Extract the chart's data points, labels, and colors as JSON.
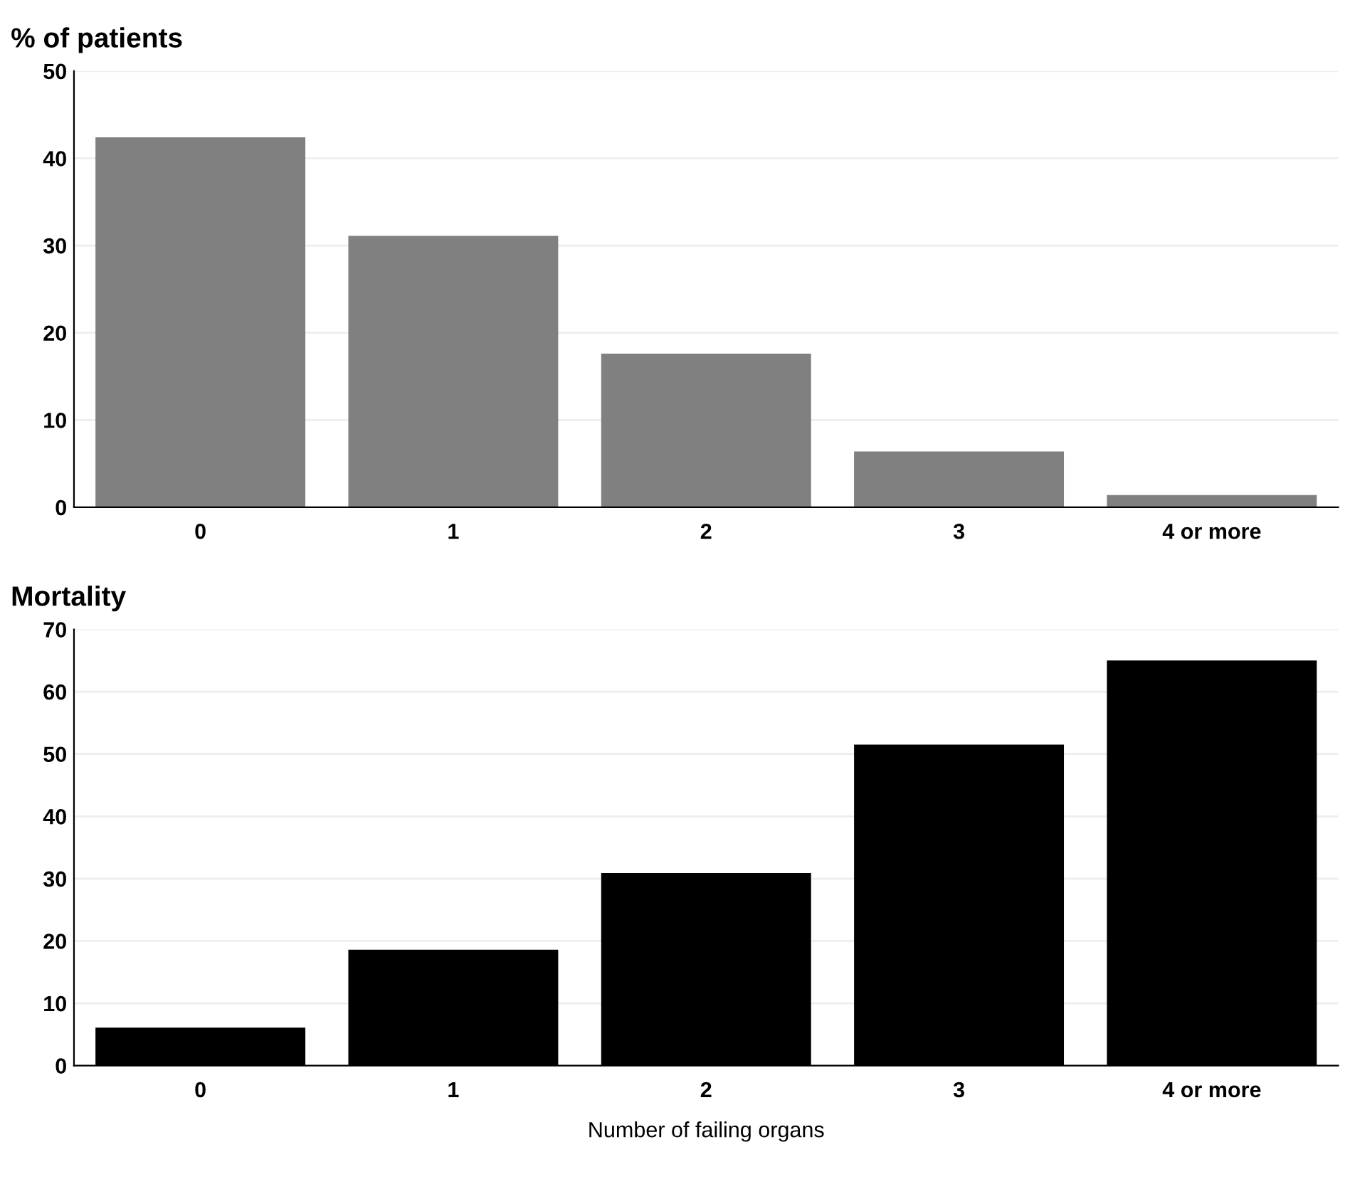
{
  "chart_data": [
    {
      "type": "bar",
      "title": "% of patients",
      "categories": [
        "0",
        "1",
        "2",
        "3",
        "4 or more"
      ],
      "values": [
        42.4,
        31.1,
        17.6,
        6.4,
        1.4
      ],
      "color": "#808080",
      "ylim": [
        0,
        50
      ],
      "yticks": [
        0,
        10,
        20,
        30,
        40,
        50
      ],
      "grid": "y"
    },
    {
      "type": "bar",
      "title": "Mortality",
      "xlabel": "Number of failing organs",
      "categories": [
        "0",
        "1",
        "2",
        "3",
        "4 or more"
      ],
      "values": [
        6.1,
        18.6,
        30.9,
        51.5,
        65.0
      ],
      "color": "#000000",
      "ylim": [
        0,
        70
      ],
      "yticks": [
        0,
        10,
        20,
        30,
        40,
        50,
        60,
        70
      ],
      "grid": "y"
    }
  ]
}
